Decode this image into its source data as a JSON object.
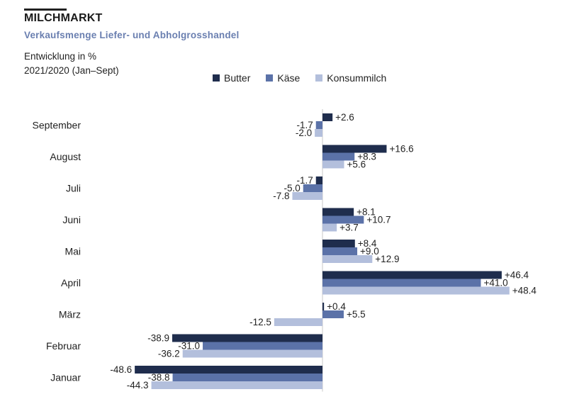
{
  "header": {
    "title": "MILCHMARKT",
    "subtitle": "Verkaufsmenge Liefer- und Abholgrosshandel",
    "note_line1": "Entwicklung in %",
    "note_line2": "2021/2020  (Jan–Sept)"
  },
  "chart_data": {
    "type": "bar",
    "orientation": "horizontal",
    "categories": [
      "September",
      "August",
      "Juli",
      "Juni",
      "Mai",
      "April",
      "März",
      "Februar",
      "Januar"
    ],
    "series": [
      {
        "name": "Butter",
        "color": "#1f2d4d",
        "values": [
          2.6,
          16.6,
          -1.7,
          8.1,
          8.4,
          46.4,
          0.4,
          -38.9,
          -48.6
        ],
        "labels": [
          "+2.6",
          "+16.6",
          "-1.7",
          "+8.1",
          "+8.4",
          "+46.4",
          "+0.4",
          "-38.9",
          "-48.6"
        ]
      },
      {
        "name": "Käse",
        "color": "#5b72a8",
        "values": [
          -1.7,
          8.3,
          -5.0,
          10.7,
          9.0,
          41.0,
          5.5,
          -31.0,
          -38.8
        ],
        "labels": [
          "-1.7",
          "+8.3",
          "-5.0",
          "+10.7",
          "+9.0",
          "+41.0",
          "+5.5",
          "-31.0",
          "-38.8"
        ]
      },
      {
        "name": "Konsummilch",
        "color": "#b3bfdc",
        "values": [
          -2.0,
          5.6,
          -7.8,
          3.7,
          12.9,
          48.4,
          -12.5,
          -36.2,
          -44.3
        ],
        "labels": [
          "-2.0",
          "+5.6",
          "-7.8",
          "+3.7",
          "+12.9",
          "+48.4",
          "-12.5",
          "-36.2",
          "-44.3"
        ]
      }
    ],
    "legend_position": "top",
    "grid": false,
    "xlim": [
      -55,
      55
    ]
  }
}
